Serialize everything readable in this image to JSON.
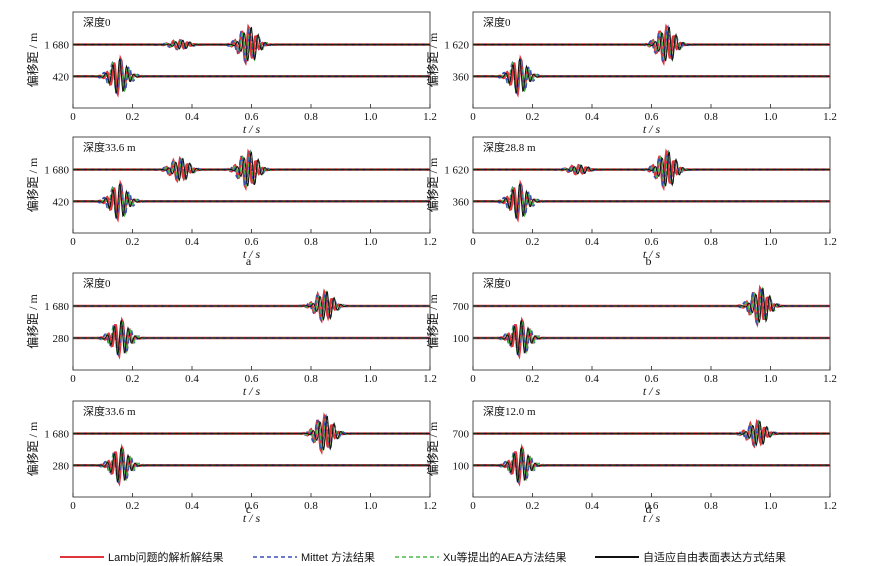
{
  "chart_data": {
    "type": "line",
    "x_label": "t / s",
    "y_label": "偏移距 / m",
    "x_ticks": [
      "0",
      "0.2",
      "0.4",
      "0.6",
      "0.8",
      "1.0",
      "1.2"
    ],
    "xlim": [
      0,
      1.2
    ],
    "legend": [
      {
        "name": "Lamb问题的解析解结果",
        "color": "#e0353b",
        "style": "solid"
      },
      {
        "name": "Mittet 方法结果",
        "color": "#3a4fb8",
        "style": "dashed"
      },
      {
        "name": "Xu等提出的AEA方法结果",
        "color": "#4db84a",
        "style": "dashed"
      },
      {
        "name": "自适应自由表面表达方式结果",
        "color": "#111111",
        "style": "solid"
      }
    ],
    "groups": [
      {
        "label": "a",
        "panels": [
          {
            "depth": "深度0",
            "offsets": [
              {
                "label": "1 680",
                "first_arrival_t": 0.62,
                "arrivals": [
                  [
                    0.355,
                    0.4
                  ],
                  [
                    0.585,
                    1.6
                  ]
                ]
              },
              {
                "label": "420",
                "first_arrival_t": 0.16,
                "arrivals": [
                  [
                    0.155,
                    1.6
                  ]
                ]
              }
            ]
          },
          {
            "depth": "深度33.6 m",
            "offsets": [
              {
                "label": "1 680",
                "first_arrival_t": 0.62,
                "arrivals": [
                  [
                    0.355,
                    1.0
                  ],
                  [
                    0.585,
                    1.6
                  ]
                ]
              },
              {
                "label": "420",
                "first_arrival_t": 0.16,
                "arrivals": [
                  [
                    0.155,
                    1.6
                  ]
                ]
              }
            ]
          }
        ]
      },
      {
        "label": "b",
        "panels": [
          {
            "depth": "深度0",
            "offsets": [
              {
                "label": "1 620",
                "first_arrival_t": 0.64,
                "arrivals": [
                  [
                    0.645,
                    1.6
                  ]
                ]
              },
              {
                "label": "360",
                "first_arrival_t": 0.16,
                "arrivals": [
                  [
                    0.155,
                    1.6
                  ]
                ]
              }
            ]
          },
          {
            "depth": "深度28.8 m",
            "offsets": [
              {
                "label": "1 620",
                "first_arrival_t": 0.64,
                "arrivals": [
                  [
                    0.35,
                    0.4
                  ],
                  [
                    0.645,
                    1.6
                  ]
                ]
              },
              {
                "label": "360",
                "first_arrival_t": 0.16,
                "arrivals": [
                  [
                    0.155,
                    1.6
                  ]
                ]
              }
            ]
          }
        ]
      },
      {
        "label": "c",
        "panels": [
          {
            "depth": "深度0",
            "offsets": [
              {
                "label": "1 680",
                "first_arrival_t": 0.84,
                "arrivals": [
                  [
                    0.84,
                    1.3
                  ]
                ]
              },
              {
                "label": "280",
                "first_arrival_t": 0.16,
                "arrivals": [
                  [
                    0.16,
                    1.6
                  ]
                ]
              }
            ]
          },
          {
            "depth": "深度33.6 m",
            "offsets": [
              {
                "label": "1 680",
                "first_arrival_t": 0.84,
                "arrivals": [
                  [
                    0.84,
                    1.6
                  ]
                ]
              },
              {
                "label": "280",
                "first_arrival_t": 0.16,
                "arrivals": [
                  [
                    0.16,
                    1.6
                  ]
                ]
              }
            ]
          }
        ]
      },
      {
        "label": "d",
        "panels": [
          {
            "depth": "深度0",
            "offsets": [
              {
                "label": "700",
                "first_arrival_t": 0.96,
                "arrivals": [
                  [
                    0.96,
                    1.6
                  ]
                ]
              },
              {
                "label": "100",
                "first_arrival_t": 0.16,
                "arrivals": [
                  [
                    0.16,
                    1.6
                  ]
                ]
              }
            ]
          },
          {
            "depth": "深度12.0 m",
            "offsets": [
              {
                "label": "700",
                "first_arrival_t": 0.95,
                "arrivals": [
                  [
                    0.95,
                    1.1
                  ]
                ]
              },
              {
                "label": "100",
                "first_arrival_t": 0.16,
                "arrivals": [
                  [
                    0.16,
                    1.6
                  ]
                ]
              }
            ]
          }
        ]
      }
    ]
  }
}
